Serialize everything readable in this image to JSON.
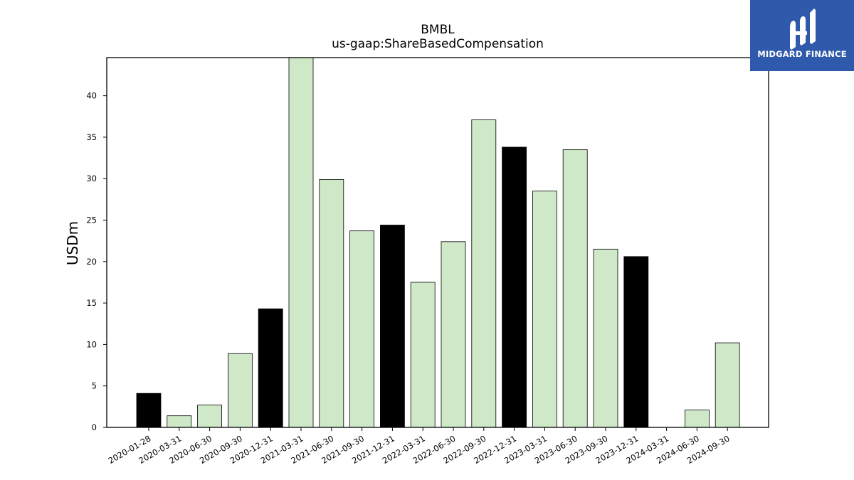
{
  "chart_data": {
    "type": "bar",
    "title": "BMBL",
    "subtitle": "us-gaap:ShareBasedCompensation",
    "xlabel": "",
    "ylabel": "USDm",
    "ylim": [
      0,
      44.6
    ],
    "yticks": [
      0,
      5,
      10,
      15,
      20,
      25,
      30,
      35,
      40
    ],
    "categories": [
      "2020-01-28",
      "2020-03-31",
      "2020-06-30",
      "2020-09-30",
      "2020-12-31",
      "2021-03-31",
      "2021-06-30",
      "2021-09-30",
      "2021-12-31",
      "2022-03-31",
      "2022-06-30",
      "2022-09-30",
      "2022-12-31",
      "2023-03-31",
      "2023-06-30",
      "2023-09-30",
      "2023-12-31",
      "2024-03-31",
      "2024-06-30",
      "2024-09-30"
    ],
    "values": [
      4.1,
      1.4,
      2.7,
      8.9,
      14.3,
      44.7,
      29.9,
      23.7,
      24.4,
      17.5,
      22.4,
      37.1,
      33.8,
      28.5,
      33.5,
      21.5,
      20.6,
      0.0,
      2.1,
      10.2
    ],
    "bar_colors": [
      "#000000",
      "#cfe9c8",
      "#cfe9c8",
      "#cfe9c8",
      "#000000",
      "#cfe9c8",
      "#cfe9c8",
      "#cfe9c8",
      "#000000",
      "#cfe9c8",
      "#cfe9c8",
      "#cfe9c8",
      "#000000",
      "#cfe9c8",
      "#cfe9c8",
      "#cfe9c8",
      "#000000",
      "#cfe9c8",
      "#cfe9c8",
      "#cfe9c8"
    ],
    "grid": false,
    "legend": "none"
  },
  "logo": {
    "text": "MIDGARD FINANCE",
    "background": "#2f5aab",
    "icon": "midgard-logo-icon"
  }
}
